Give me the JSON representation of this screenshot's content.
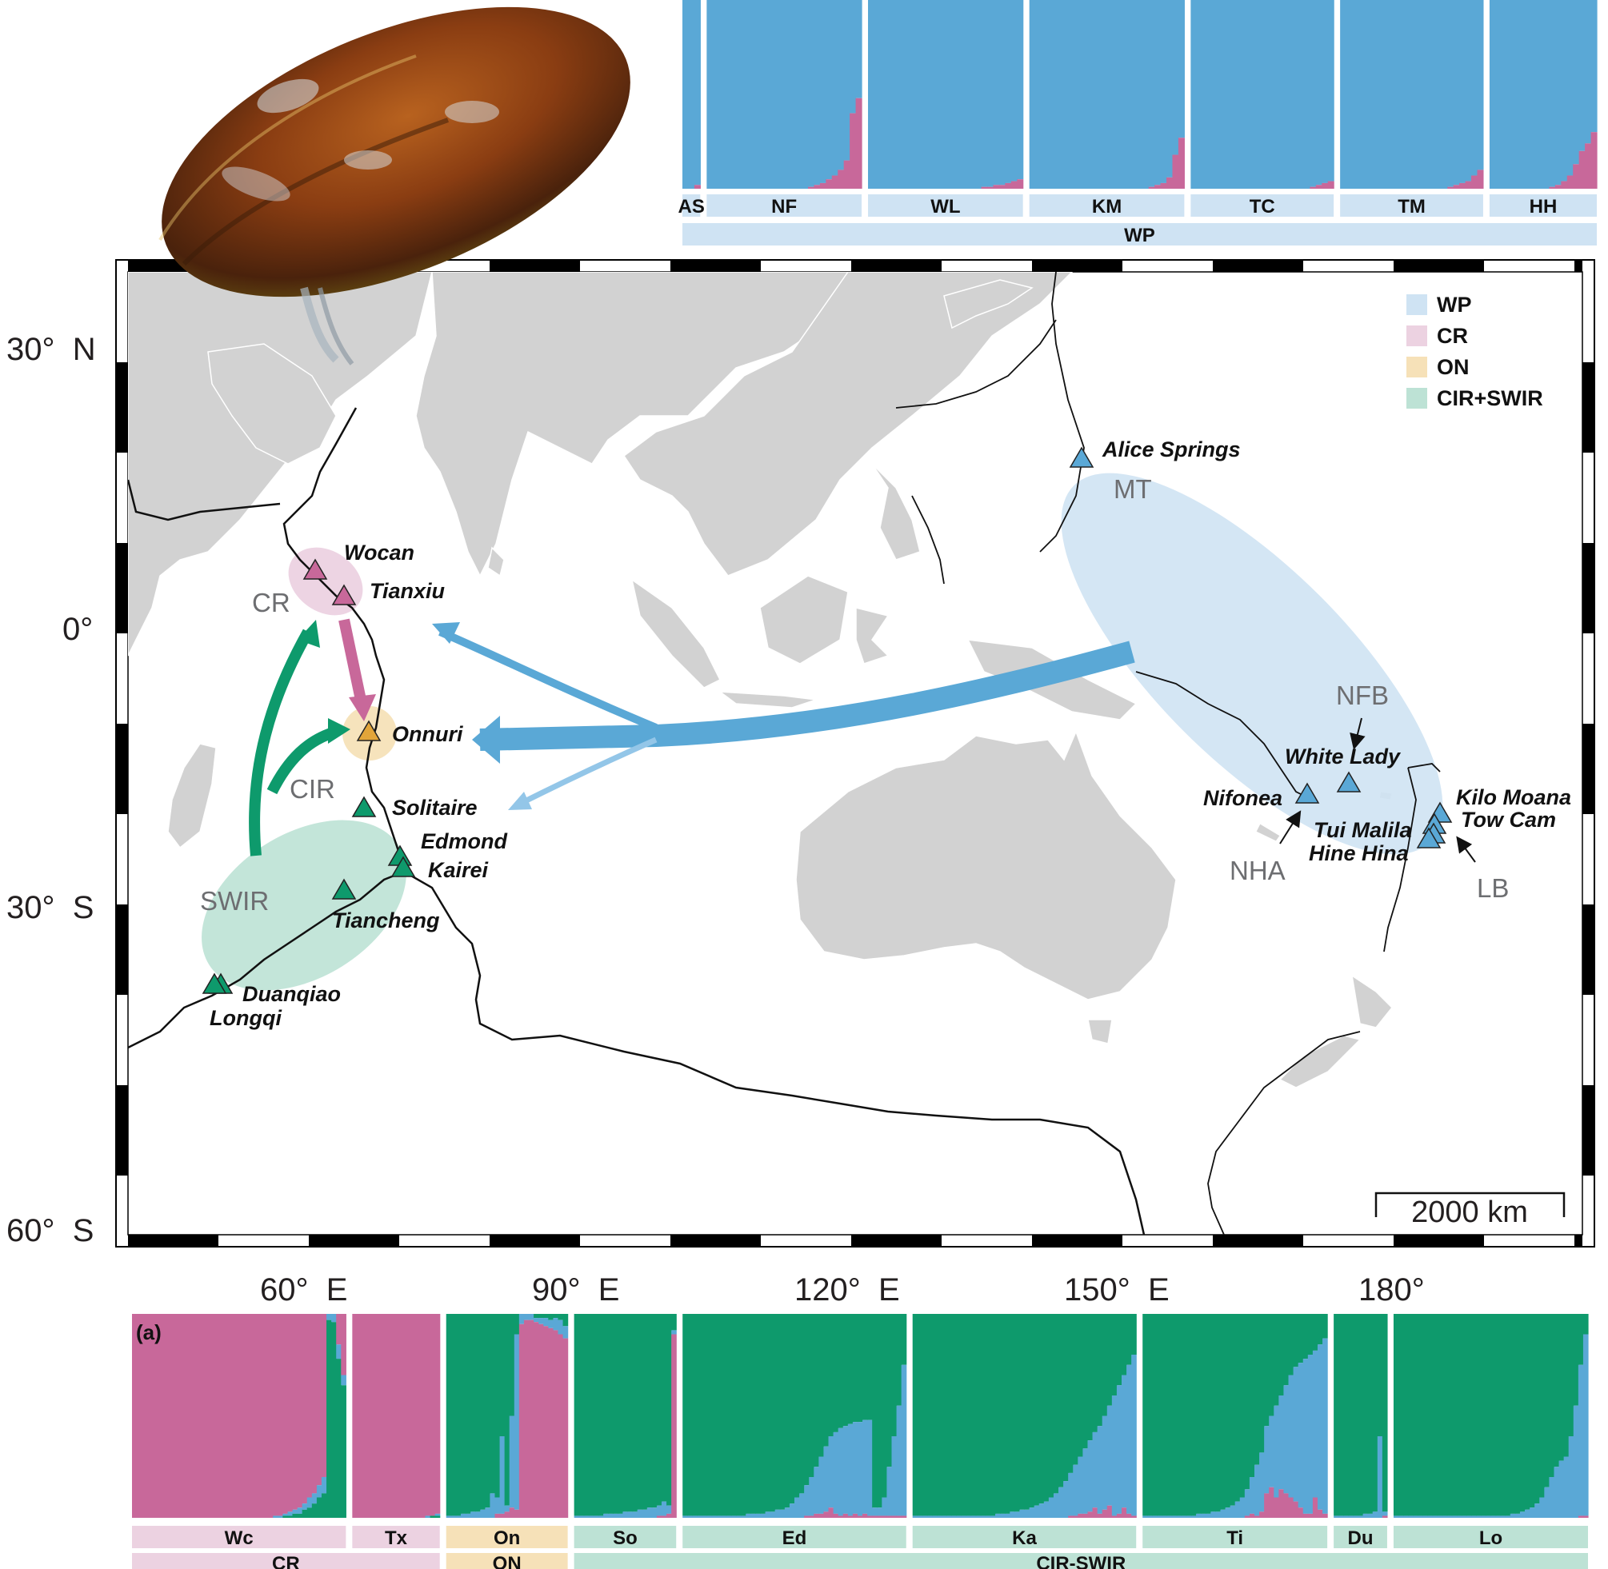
{
  "panel_label": "(a)",
  "colors": {
    "WP": "#5aa8d6",
    "CR": "#c8689a",
    "ON": "#e2a53a",
    "CIR_SWIR": "#0e9a6c",
    "WP_light": "#cfe3f3",
    "CR_light": "#ecd2e1",
    "ON_light": "#f6e1b8",
    "CIR_SWIR_light": "#bde2d5",
    "land": "#d2d2d2",
    "coast": "#ffffff"
  },
  "legend": [
    {
      "label": "WP",
      "color": "#cfe3f3"
    },
    {
      "label": "CR",
      "color": "#ecd2e1"
    },
    {
      "label": "ON",
      "color": "#f6e1b8"
    },
    {
      "label": "CIR+SWIR",
      "color": "#bde2d5"
    }
  ],
  "lat_labels": {
    "n30": "30°  N",
    "eq": "0°",
    "s30": "30°  S",
    "s60": "60°  S"
  },
  "lon_labels": {
    "e60": "60°  E",
    "e90": "90°  E",
    "e120": "120°  E",
    "e150": "150°  E",
    "d180": "180°"
  },
  "scale_label": "2000 km",
  "region_labels": {
    "CR": "CR",
    "CIR": "CIR",
    "SWIR": "SWIR",
    "MT": "MT",
    "NFB": "NFB",
    "NHA": "NHA",
    "LB": "LB"
  },
  "sites": {
    "wocan": "Wocan",
    "tianxiu": "Tianxiu",
    "onnuri": "Onnuri",
    "solitaire": "Solitaire",
    "edmond": "Edmond",
    "kairei": "Kairei",
    "tiancheng": "Tiancheng",
    "duanqiao": "Duanqiao",
    "longqi": "Longqi",
    "alice": "Alice Springs",
    "whitelady": "White Lady",
    "nifonea": "Nifonea",
    "kilomoana": "Kilo Moana",
    "towcam": "Tow Cam",
    "tuimalila": "Tui Malila",
    "hinehina": "Hine Hina"
  },
  "structure_top": {
    "populations": [
      {
        "code": "AS",
        "wp": [
          1.0,
          1.0,
          0.98
        ]
      },
      {
        "code": "NF",
        "wp": [
          1.0,
          1.0,
          1.0,
          1.0,
          1.0,
          1.0,
          1.0,
          1.0,
          1.0,
          1.0,
          1.0,
          1.0,
          1.0,
          1.0,
          1.0,
          1.0,
          1.0,
          0.99,
          0.98,
          0.97,
          0.95,
          0.93,
          0.9,
          0.85,
          0.6,
          0.52
        ]
      },
      {
        "code": "WL",
        "wp": [
          1.0,
          1.0,
          1.0,
          1.0,
          1.0,
          1.0,
          1.0,
          1.0,
          1.0,
          1.0,
          1.0,
          1.0,
          1.0,
          1.0,
          1.0,
          1.0,
          1.0,
          1.0,
          1.0,
          0.99,
          0.99,
          0.98,
          0.98,
          0.97,
          0.96,
          0.95
        ]
      },
      {
        "code": "KM",
        "wp": [
          1.0,
          1.0,
          1.0,
          1.0,
          1.0,
          1.0,
          1.0,
          1.0,
          1.0,
          1.0,
          1.0,
          1.0,
          1.0,
          1.0,
          1.0,
          1.0,
          1.0,
          1.0,
          1.0,
          1.0,
          0.99,
          0.98,
          0.97,
          0.94,
          0.82,
          0.73
        ]
      },
      {
        "code": "TC",
        "wp": [
          1.0,
          1.0,
          1.0,
          1.0,
          1.0,
          1.0,
          1.0,
          1.0,
          1.0,
          1.0,
          1.0,
          1.0,
          1.0,
          1.0,
          1.0,
          1.0,
          1.0,
          1.0,
          1.0,
          1.0,
          0.99,
          0.98,
          0.97,
          0.96
        ]
      },
      {
        "code": "TM",
        "wp": [
          1.0,
          1.0,
          1.0,
          1.0,
          1.0,
          1.0,
          1.0,
          1.0,
          1.0,
          1.0,
          1.0,
          1.0,
          1.0,
          1.0,
          1.0,
          1.0,
          1.0,
          1.0,
          0.99,
          0.98,
          0.97,
          0.96,
          0.93,
          0.9
        ]
      },
      {
        "code": "HH",
        "wp": [
          1.0,
          1.0,
          1.0,
          1.0,
          1.0,
          1.0,
          1.0,
          1.0,
          1.0,
          1.0,
          0.99,
          0.98,
          0.96,
          0.93,
          0.87,
          0.8,
          0.76,
          0.7
        ]
      }
    ],
    "group": "WP"
  },
  "structure_bottom": {
    "populations": [
      {
        "code": "Wc",
        "group": "CR",
        "cr": [
          1,
          1,
          1,
          1,
          1,
          1,
          1,
          1,
          1,
          1,
          1,
          1,
          1,
          1,
          1,
          1,
          1,
          1,
          1,
          1,
          1,
          1,
          1,
          1,
          1,
          1,
          1,
          1,
          1,
          0.99,
          0.99,
          0.98,
          0.97,
          0.96,
          0.95,
          0.93,
          0.9,
          0.88,
          0.84,
          0.8,
          0,
          0,
          0.15,
          0.3
        ],
        "cir": [
          0,
          0,
          0,
          0,
          0,
          0,
          0,
          0,
          0,
          0,
          0,
          0,
          0,
          0,
          0,
          0,
          0,
          0,
          0,
          0,
          0,
          0,
          0,
          0,
          0,
          0,
          0,
          0,
          0,
          0,
          0,
          0.01,
          0.01,
          0.02,
          0.02,
          0.04,
          0.05,
          0.07,
          0.1,
          0.12,
          0.97,
          0.96,
          0.78,
          0.65
        ]
      },
      {
        "code": "Tx",
        "group": "CR",
        "cr": [
          1,
          1,
          1,
          1,
          1,
          1,
          1,
          1,
          1,
          1,
          1,
          1,
          1,
          1,
          1,
          0.99,
          0.99,
          0.98
        ],
        "cir": [
          0,
          0,
          0,
          0,
          0,
          0,
          0,
          0,
          0,
          0,
          0,
          0,
          0,
          0,
          0,
          0,
          0.01,
          0.01
        ]
      },
      {
        "code": "On",
        "group": "ON",
        "cr": [
          0,
          0,
          0,
          0,
          0,
          0,
          0,
          0,
          0,
          0,
          0.02,
          0.02,
          0.03,
          0.05,
          0.04,
          0.95,
          0.97,
          0.97,
          0.96,
          0.95,
          0.94,
          0.93,
          0.92,
          0.9,
          0.88
        ],
        "cir": [
          0.99,
          0.99,
          0.99,
          0.98,
          0.98,
          0.97,
          0.97,
          0.96,
          0.95,
          0.88,
          0.9,
          0.6,
          0.94,
          0.5,
          0.1,
          0,
          0,
          0,
          0.02,
          0.02,
          0.02,
          0.03,
          0.02,
          0.03,
          0.06
        ]
      },
      {
        "code": "So",
        "group": "CIR-SWIR",
        "cr": [
          0,
          0,
          0,
          0,
          0,
          0,
          0,
          0,
          0,
          0,
          0,
          0,
          0,
          0,
          0,
          0,
          0,
          0.01,
          0.01,
          0.02,
          0.9
        ],
        "cir": [
          0.99,
          0.99,
          0.99,
          0.99,
          0.99,
          0.99,
          0.98,
          0.98,
          0.98,
          0.98,
          0.97,
          0.97,
          0.97,
          0.96,
          0.96,
          0.95,
          0.95,
          0.94,
          0.92,
          0.94,
          0.08
        ]
      },
      {
        "code": "Ed",
        "group": "CIR-SWIR",
        "cr": [
          0,
          0,
          0,
          0,
          0,
          0,
          0,
          0,
          0,
          0,
          0,
          0,
          0,
          0,
          0,
          0,
          0,
          0,
          0,
          0,
          0,
          0,
          0,
          0,
          0,
          0.01,
          0.01,
          0.02,
          0.02,
          0.03,
          0.05,
          0.02,
          0.01,
          0.02,
          0.01,
          0.02,
          0.01,
          0.02,
          0.01,
          0.01,
          0.01,
          0.01,
          0.01,
          0.01,
          0.01,
          0.01
        ],
        "cir": [
          0.99,
          0.99,
          0.99,
          0.99,
          0.99,
          0.99,
          0.99,
          0.99,
          0.99,
          0.99,
          0.99,
          0.99,
          0.99,
          0.98,
          0.98,
          0.98,
          0.98,
          0.97,
          0.97,
          0.96,
          0.96,
          0.95,
          0.93,
          0.9,
          0.88,
          0.84,
          0.8,
          0.75,
          0.7,
          0.65,
          0.6,
          0.58,
          0.56,
          0.55,
          0.54,
          0.53,
          0.53,
          0.52,
          0.52,
          0.95,
          0.95,
          0.9,
          0.75,
          0.6,
          0.45,
          0.25
        ]
      },
      {
        "code": "Ka",
        "group": "CIR-SWIR",
        "cr": [
          0,
          0,
          0,
          0,
          0,
          0,
          0,
          0,
          0,
          0,
          0,
          0,
          0,
          0,
          0,
          0,
          0,
          0,
          0,
          0,
          0,
          0,
          0,
          0,
          0,
          0,
          0,
          0,
          0,
          0,
          0,
          0,
          0.01,
          0.01,
          0.02,
          0.02,
          0.03,
          0.05,
          0.02,
          0.04,
          0.06,
          0.01,
          0.02,
          0.05,
          0.02,
          0.01
        ],
        "cir": [
          0.99,
          0.99,
          0.99,
          0.99,
          0.99,
          0.99,
          0.99,
          0.99,
          0.99,
          0.99,
          0.99,
          0.99,
          0.99,
          0.99,
          0.99,
          0.99,
          0.99,
          0.98,
          0.98,
          0.98,
          0.97,
          0.97,
          0.96,
          0.96,
          0.95,
          0.94,
          0.93,
          0.92,
          0.9,
          0.88,
          0.85,
          0.82,
          0.78,
          0.74,
          0.7,
          0.66,
          0.62,
          0.58,
          0.55,
          0.5,
          0.45,
          0.4,
          0.35,
          0.3,
          0.25,
          0.2
        ]
      },
      {
        "code": "Ti",
        "group": "CIR-SWIR",
        "cr": [
          0,
          0,
          0,
          0,
          0,
          0,
          0,
          0,
          0,
          0,
          0,
          0,
          0,
          0,
          0,
          0,
          0,
          0,
          0,
          0,
          0,
          0.01,
          0.02,
          0.01,
          0.03,
          0.12,
          0.15,
          0.1,
          0.14,
          0.12,
          0.1,
          0.08,
          0.05,
          0.02,
          0.02,
          0.1,
          0.04,
          0.02
        ],
        "cir": [
          0.99,
          0.99,
          0.99,
          0.99,
          0.99,
          0.99,
          0.99,
          0.99,
          0.99,
          0.99,
          0.99,
          0.98,
          0.98,
          0.98,
          0.97,
          0.97,
          0.96,
          0.95,
          0.94,
          0.92,
          0.9,
          0.86,
          0.8,
          0.74,
          0.68,
          0.55,
          0.5,
          0.45,
          0.4,
          0.35,
          0.3,
          0.26,
          0.24,
          0.22,
          0.2,
          0.18,
          0.15,
          0.12
        ]
      },
      {
        "code": "Du",
        "group": "CIR-SWIR",
        "cr": [
          0,
          0,
          0,
          0,
          0,
          0,
          0,
          0,
          0,
          0,
          0.01
        ],
        "cir": [
          0.99,
          0.99,
          0.99,
          0.99,
          0.99,
          0.99,
          0.98,
          0.98,
          0.97,
          0.6,
          0.97
        ]
      },
      {
        "code": "Lo",
        "group": "CIR-SWIR",
        "cr": [
          0,
          0,
          0,
          0,
          0,
          0,
          0,
          0,
          0,
          0,
          0,
          0,
          0,
          0,
          0,
          0,
          0,
          0,
          0,
          0,
          0,
          0,
          0,
          0,
          0,
          0,
          0,
          0,
          0,
          0,
          0,
          0,
          0,
          0,
          0,
          0,
          0,
          0,
          0.01,
          0.01
        ],
        "cir": [
          0.99,
          0.99,
          0.99,
          0.99,
          0.99,
          0.99,
          0.99,
          0.99,
          0.99,
          0.99,
          0.99,
          0.99,
          0.99,
          0.99,
          0.99,
          0.99,
          0.99,
          0.99,
          0.99,
          0.99,
          0.99,
          0.99,
          0.99,
          0.99,
          0.98,
          0.98,
          0.97,
          0.96,
          0.95,
          0.93,
          0.9,
          0.85,
          0.8,
          0.75,
          0.72,
          0.7,
          0.6,
          0.45,
          0.25,
          0.1
        ]
      }
    ],
    "groups": [
      "CR",
      "ON",
      "CIR-SWIR"
    ]
  }
}
